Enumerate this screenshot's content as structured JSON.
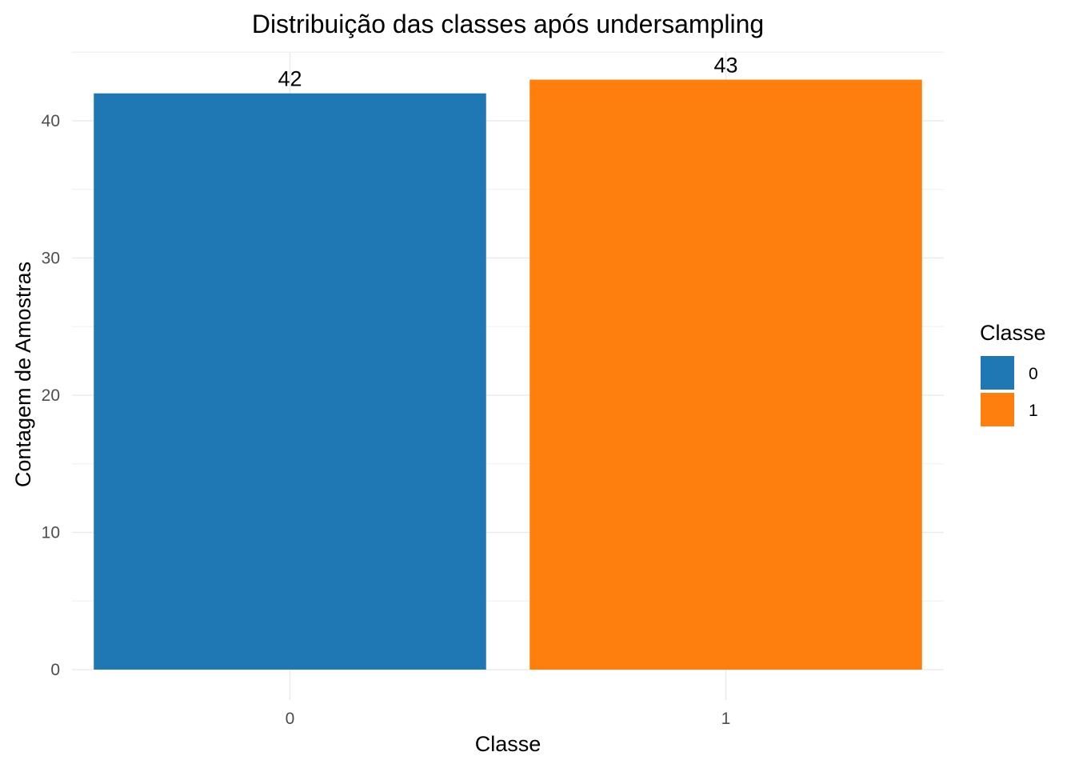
{
  "chart_data": {
    "type": "bar",
    "title": "Distribuição das classes após undersampling",
    "xlabel": "Classe",
    "ylabel": "Contagem de Amostras",
    "categories": [
      "0",
      "1"
    ],
    "values": [
      42,
      43
    ],
    "data_labels": [
      "42",
      "43"
    ],
    "colors": [
      "#1f77b4",
      "#ff7f0e"
    ],
    "ylim": [
      0,
      45
    ],
    "yticks": [
      0,
      10,
      20,
      30,
      40
    ],
    "ytick_labels": [
      "0",
      "10",
      "20",
      "30",
      "40"
    ],
    "grid": true,
    "legend": {
      "title": "Classe",
      "position": "right",
      "entries": [
        {
          "label": "0",
          "color": "#1f77b4"
        },
        {
          "label": "1",
          "color": "#ff7f0e"
        }
      ]
    }
  }
}
